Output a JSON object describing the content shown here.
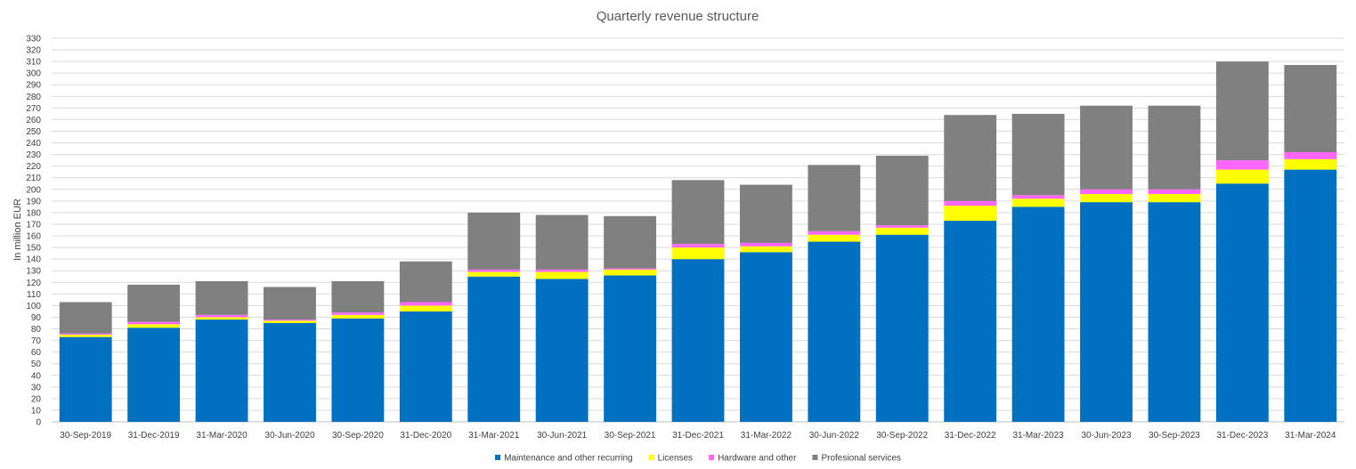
{
  "chart_data": {
    "type": "bar",
    "stacked": true,
    "title": "Quarterly revenue structure",
    "xlabel": "",
    "ylabel": "In million EUR",
    "ylim": [
      0,
      330
    ],
    "ytick_step": 10,
    "grid": true,
    "legend_position": "bottom",
    "categories": [
      "30-Sep-2019",
      "31-Dec-2019",
      "31-Mar-2020",
      "30-Jun-2020",
      "30-Sep-2020",
      "31-Dec-2020",
      "31-Mar-2021",
      "30-Jun-2021",
      "30-Sep-2021",
      "31-Dec-2021",
      "31-Mar-2022",
      "30-Jun-2022",
      "30-Sep-2022",
      "31-Dec-2022",
      "31-Mar-2023",
      "30-Jun-2023",
      "30-Sep-2023",
      "31-Dec-2023",
      "31-Mar-2024"
    ],
    "series": [
      {
        "name": "Maintenance and other recurring",
        "color": "#0070C0",
        "values": [
          73,
          81,
          88,
          85,
          89,
          95,
          125,
          123,
          126,
          140,
          146,
          155,
          161,
          173,
          185,
          189,
          189,
          205,
          217
        ]
      },
      {
        "name": "Licenses",
        "color": "#FFFF00",
        "values": [
          2,
          3,
          2,
          2,
          3,
          5,
          4,
          6,
          5,
          10,
          5,
          6,
          6,
          13,
          7,
          7,
          7,
          12,
          9
        ]
      },
      {
        "name": "Hardware and other",
        "color": "#FF66FF",
        "values": [
          1,
          2,
          2,
          1,
          2,
          3,
          2,
          2,
          1,
          3,
          3,
          3,
          2,
          4,
          3,
          4,
          4,
          8,
          6
        ]
      },
      {
        "name": "Profesional services",
        "color": "#808080",
        "values": [
          27,
          32,
          29,
          28,
          27,
          35,
          49,
          47,
          45,
          55,
          50,
          57,
          60,
          74,
          70,
          72,
          72,
          85,
          75
        ]
      }
    ]
  }
}
